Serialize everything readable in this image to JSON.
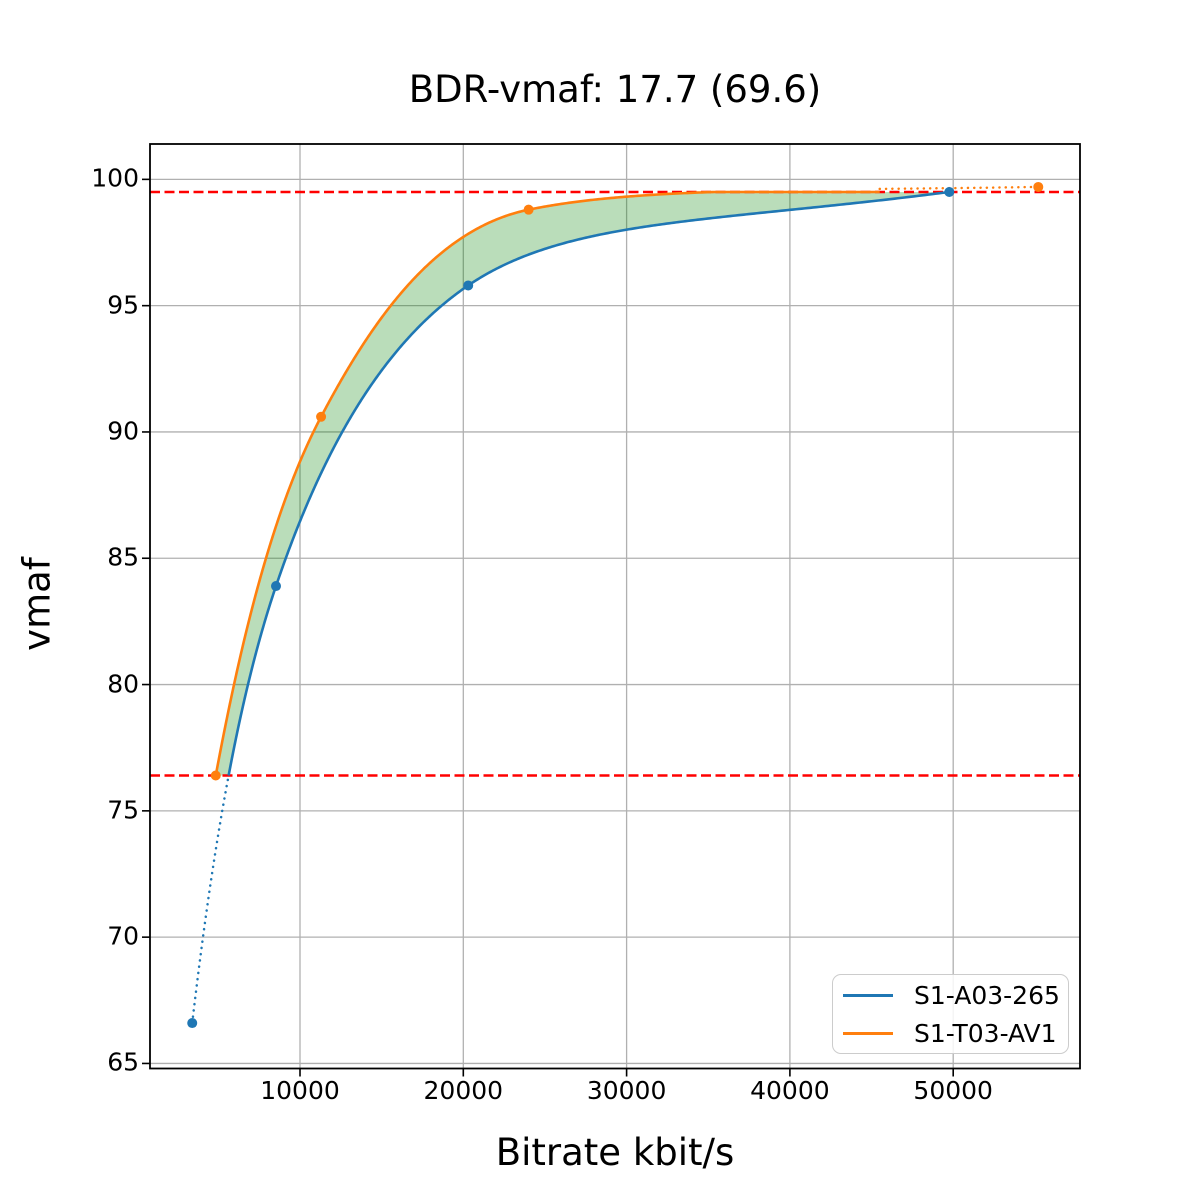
{
  "chart_data": {
    "type": "line",
    "title": "BDR-vmaf: 17.7 (69.6)",
    "xlabel": "Bitrate kbit/s",
    "ylabel": "vmaf",
    "xlim": [
      814,
      57765
    ],
    "ylim": [
      64.8,
      101.4
    ],
    "xticks": [
      10000,
      20000,
      30000,
      40000,
      50000
    ],
    "yticks": [
      65,
      70,
      75,
      80,
      85,
      90,
      95,
      100
    ],
    "grid": true,
    "grid_color": "#b0b0b0",
    "spine_color": "#000000",
    "series": [
      {
        "name": "S1-A03-265",
        "color": "#1f77b4",
        "points": [
          [
            3400,
            66.6
          ],
          [
            8530,
            83.9
          ],
          [
            20300,
            95.8
          ],
          [
            49760,
            99.5
          ]
        ],
        "dotted_below_vmaf": 76.4
      },
      {
        "name": "S1-T03-AV1",
        "color": "#ff7f0e",
        "points": [
          [
            4840,
            76.4
          ],
          [
            11290,
            90.6
          ],
          [
            24000,
            98.8
          ],
          [
            55210,
            99.7
          ]
        ],
        "solid_until_bitrate": 45500,
        "clip_solid_at_vmaf": 99.5
      }
    ],
    "hlines": {
      "values": [
        99.5,
        76.4
      ],
      "color": "#ff0000",
      "style": "dashed"
    },
    "overlap_fill": {
      "vmaf_range": [
        76.4,
        99.5
      ],
      "color": "rgba(0,128,0,0.27)"
    },
    "legend": {
      "position": "lower right",
      "entries": [
        "S1-A03-265",
        "S1-T03-AV1"
      ]
    }
  }
}
